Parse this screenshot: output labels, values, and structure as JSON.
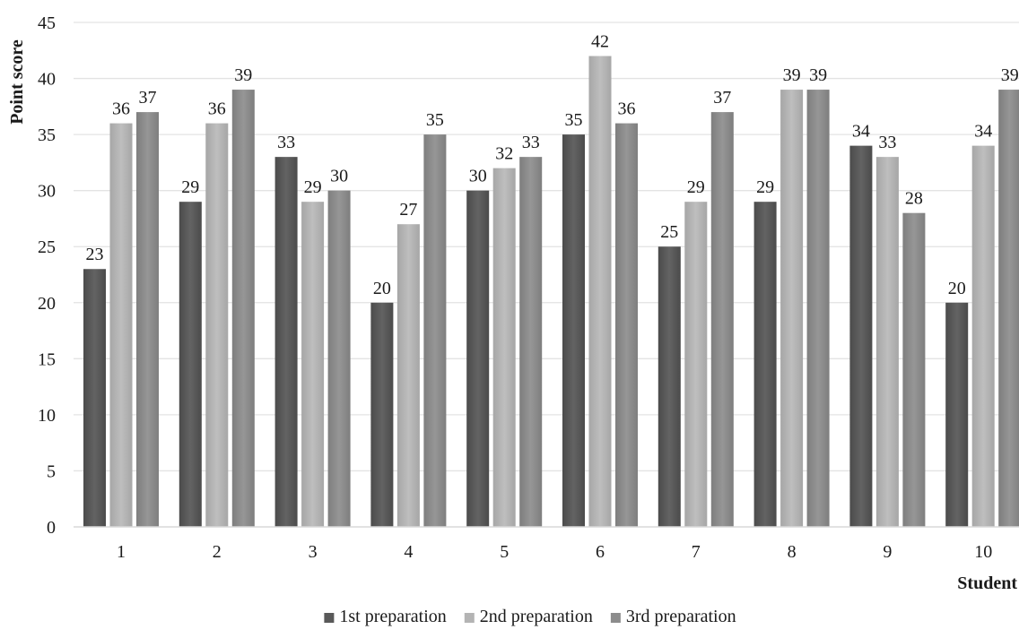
{
  "chart_data": {
    "type": "bar",
    "title": "",
    "xlabel": "Student",
    "ylabel": "Point score",
    "ylim": [
      0,
      45
    ],
    "yticks": [
      0,
      5,
      10,
      15,
      20,
      25,
      30,
      35,
      40,
      45
    ],
    "grid": true,
    "legend_position": "bottom",
    "categories": [
      "1",
      "2",
      "3",
      "4",
      "5",
      "6",
      "7",
      "8",
      "9",
      "10"
    ],
    "series": [
      {
        "name": "1st preparation",
        "color": "#595959",
        "values": [
          23,
          29,
          33,
          20,
          30,
          35,
          25,
          29,
          34,
          20
        ]
      },
      {
        "name": "2nd preparation",
        "color": "#b4b4b4",
        "values": [
          36,
          36,
          29,
          27,
          32,
          42,
          29,
          39,
          33,
          34
        ]
      },
      {
        "name": "3rd preparation",
        "color": "#8c8c8c",
        "values": [
          37,
          39,
          30,
          35,
          33,
          36,
          37,
          39,
          28,
          39
        ]
      }
    ]
  }
}
